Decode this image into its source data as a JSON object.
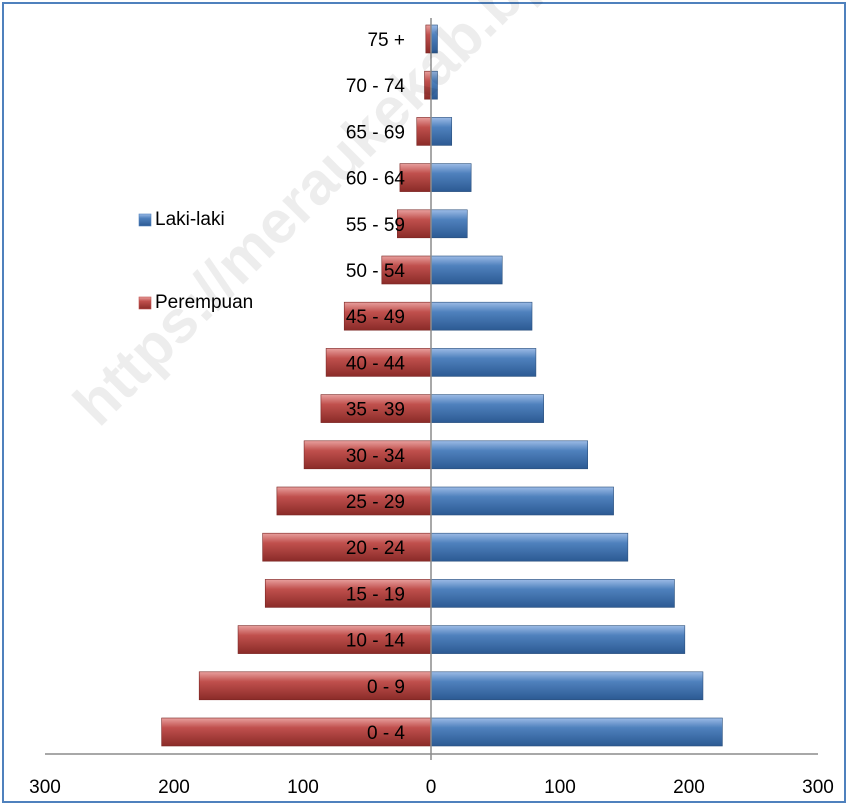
{
  "chart_data": {
    "type": "bar",
    "orientation": "horizontal",
    "categories": [
      "0 - 4",
      "0 - 9",
      "10 - 14",
      "15 - 19",
      "20 - 24",
      "25 - 29",
      "30 - 34",
      "35 - 39",
      "40 - 44",
      "45 - 49",
      "50 - 54",
      "55 - 59",
      "60 - 64",
      "65 - 69",
      "70 - 74",
      "75 +"
    ],
    "series": [
      {
        "name": "Laki-laki",
        "color": "#4f81bd",
        "values": [
          225,
          210,
          196,
          188,
          152,
          141,
          121,
          87,
          81,
          78,
          55,
          28,
          31,
          16,
          5,
          5
        ]
      },
      {
        "name": "Perempuan",
        "color": "#c0504d",
        "values": [
          208,
          179,
          149,
          128,
          130,
          119,
          98,
          85,
          81,
          67,
          38,
          26,
          24,
          11,
          5,
          4
        ]
      }
    ],
    "xticks": [
      "300",
      "200",
      "100",
      "0",
      "100",
      "200",
      "300"
    ],
    "xlim": [
      -300,
      300
    ],
    "legend_position": "left",
    "grid": false
  },
  "watermark": "https://meraukekab.bps.go.id"
}
